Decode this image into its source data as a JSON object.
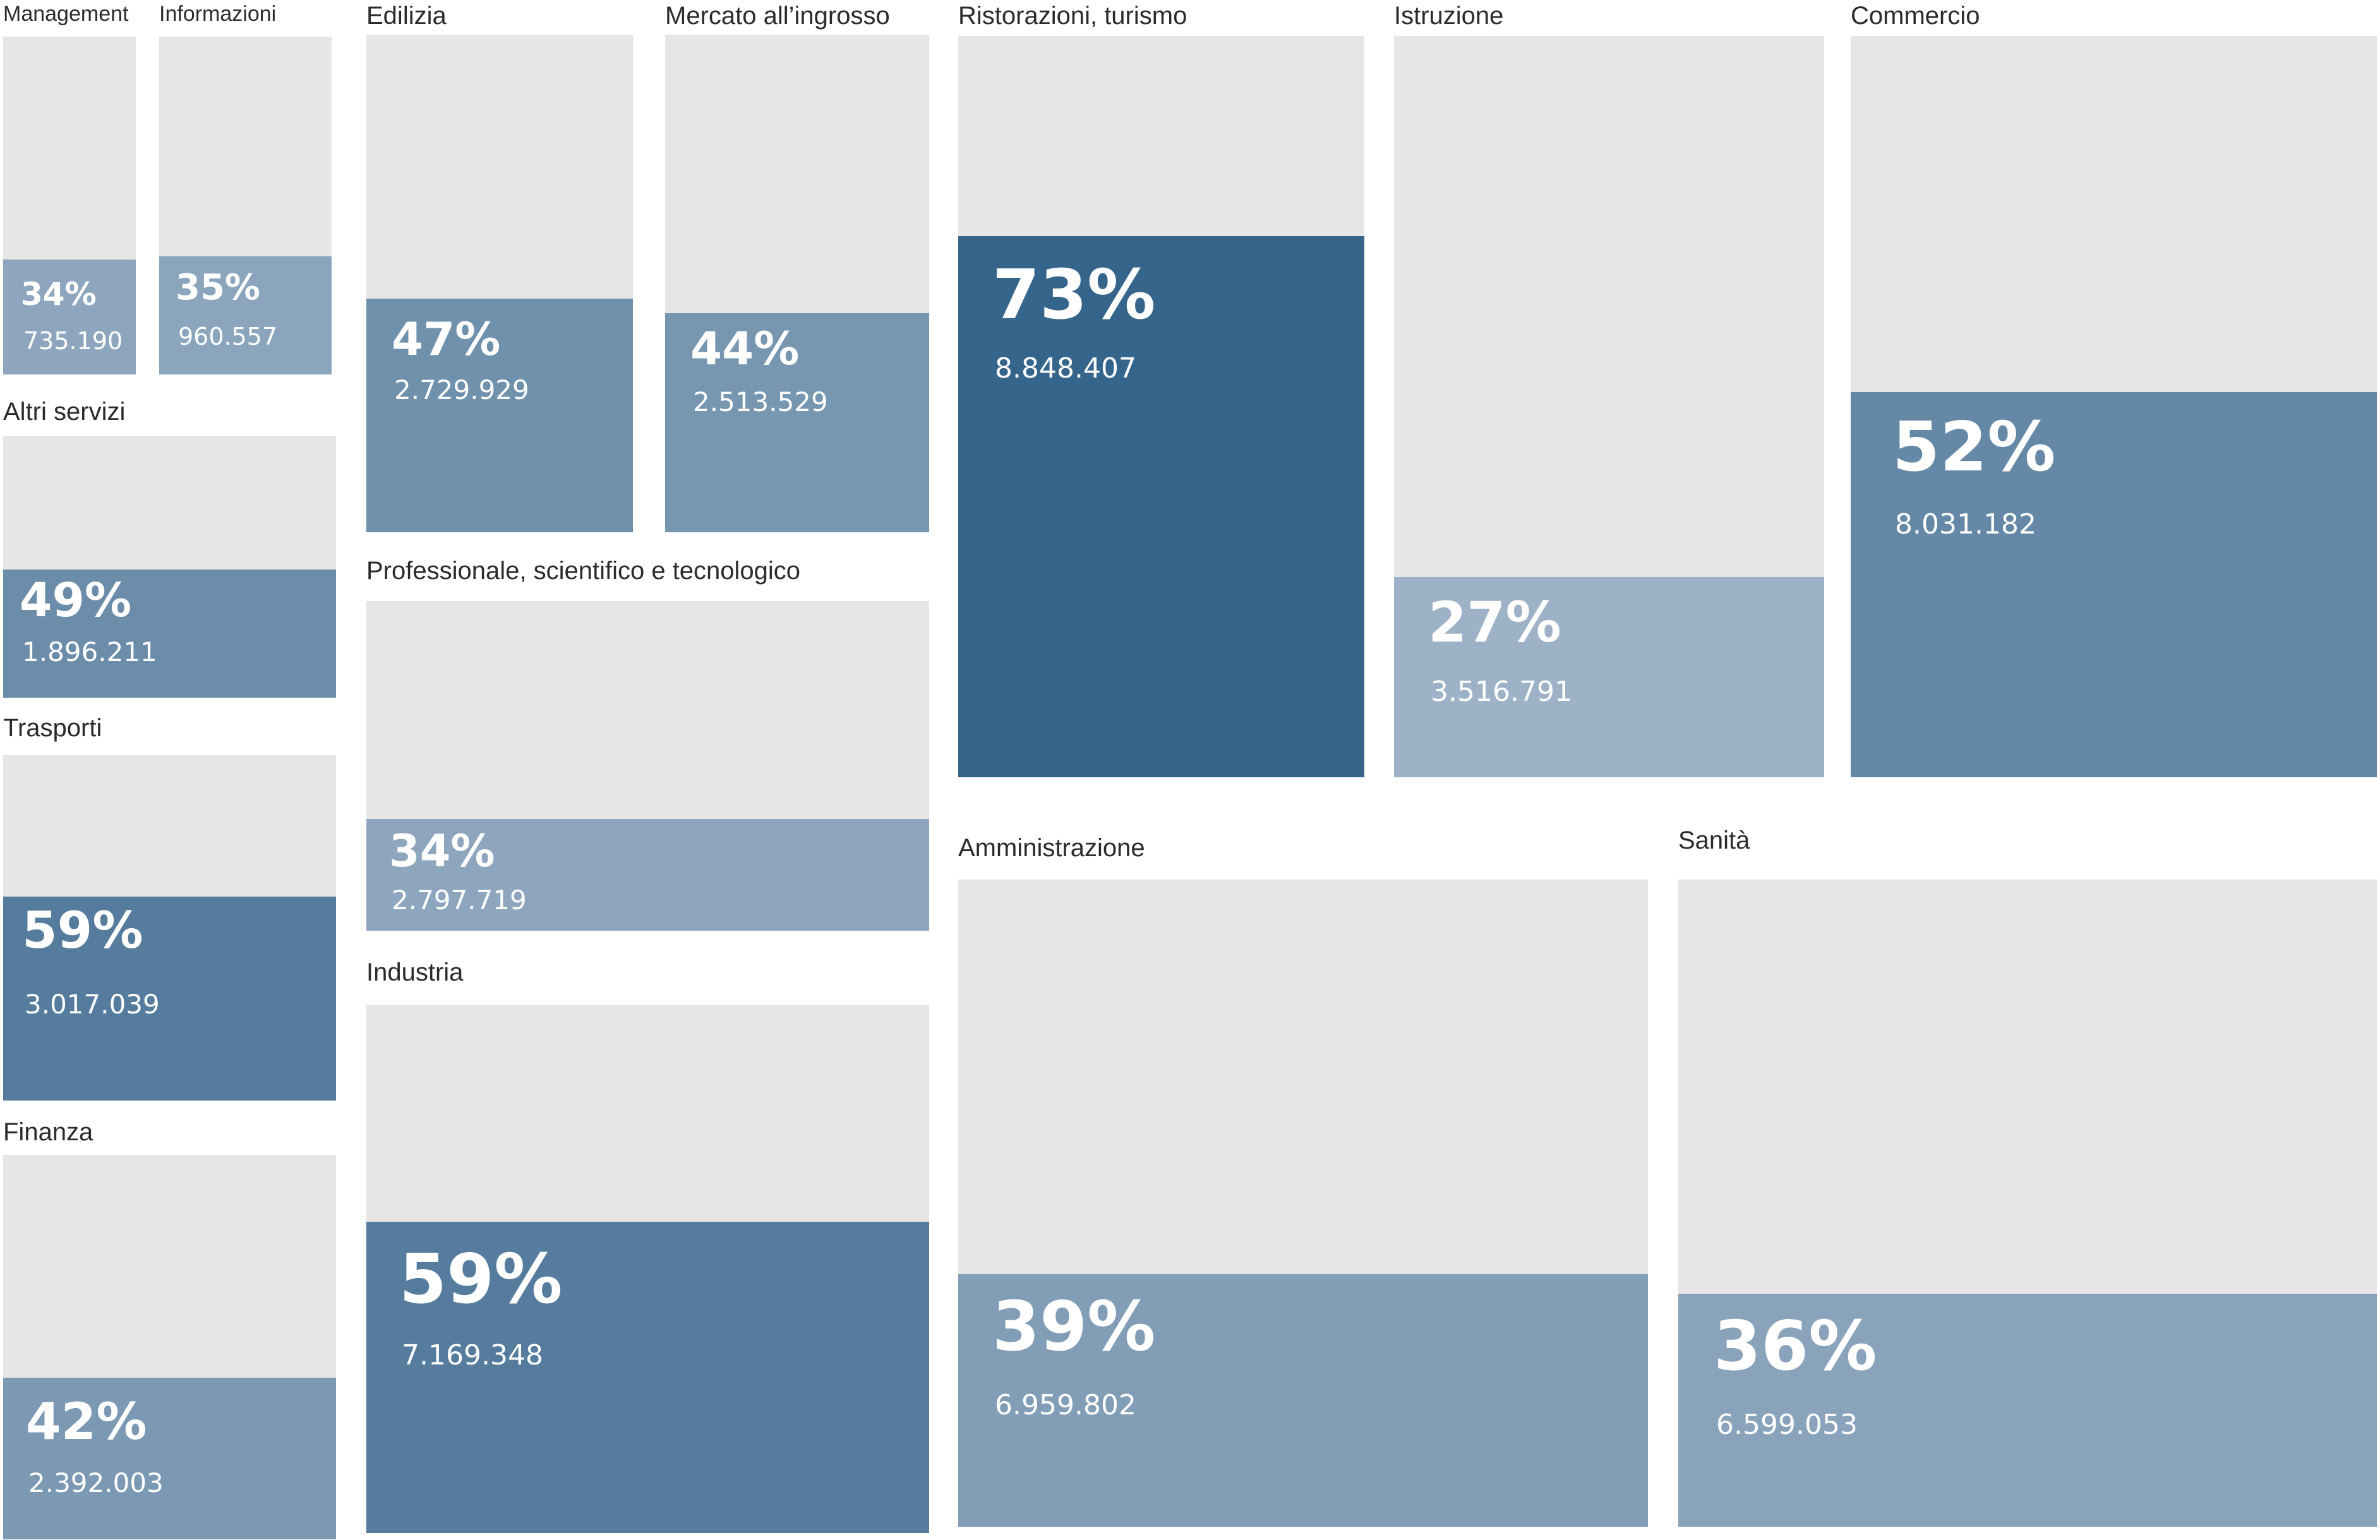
{
  "colors": {
    "empty": "#e6e6e6",
    "text": "#2b2b2b",
    "scale_light": "#9db2c6",
    "scale_dark": "#35658a"
  },
  "chart_data": {
    "type": "treemap",
    "title": "",
    "items": [
      {
        "name": "Management",
        "percent": "34%",
        "share": 0.34,
        "count": "735.190",
        "count_value": 735190
      },
      {
        "name": "Informazioni",
        "percent": "35%",
        "share": 0.35,
        "count": "960.557",
        "count_value": 960557
      },
      {
        "name": "Edilizia",
        "percent": "47%",
        "share": 0.47,
        "count": "2.729.929",
        "count_value": 2729929
      },
      {
        "name": "Mercato all’ingrosso",
        "percent": "44%",
        "share": 0.44,
        "count": "2.513.529",
        "count_value": 2513529
      },
      {
        "name": "Ristorazioni, turismo",
        "percent": "73%",
        "share": 0.73,
        "count": "8.848.407",
        "count_value": 8848407
      },
      {
        "name": "Istruzione",
        "percent": "27%",
        "share": 0.27,
        "count": "3.516.791",
        "count_value": 3516791
      },
      {
        "name": "Commercio",
        "percent": "52%",
        "share": 0.52,
        "count": "8.031.182",
        "count_value": 8031182
      },
      {
        "name": "Altri servizi",
        "percent": "49%",
        "share": 0.49,
        "count": "1.896.211",
        "count_value": 1896211
      },
      {
        "name": "Professionale, scientifico e tecnologico",
        "percent": "34%",
        "share": 0.34,
        "count": "2.797.719",
        "count_value": 2797719
      },
      {
        "name": "Trasporti",
        "percent": "59%",
        "share": 0.59,
        "count": "3.017.039",
        "count_value": 3017039
      },
      {
        "name": "Industria",
        "percent": "59%",
        "share": 0.59,
        "count": "7.169.348",
        "count_value": 7169348
      },
      {
        "name": "Amministrazione",
        "percent": "39%",
        "share": 0.39,
        "count": "6.959.802",
        "count_value": 6959802
      },
      {
        "name": "Sanità",
        "percent": "36%",
        "share": 0.36,
        "count": "6.599.053",
        "count_value": 6599053
      },
      {
        "name": "Finanza",
        "percent": "42%",
        "share": 0.42,
        "count": "2.392.003",
        "count_value": 2392003
      }
    ]
  }
}
